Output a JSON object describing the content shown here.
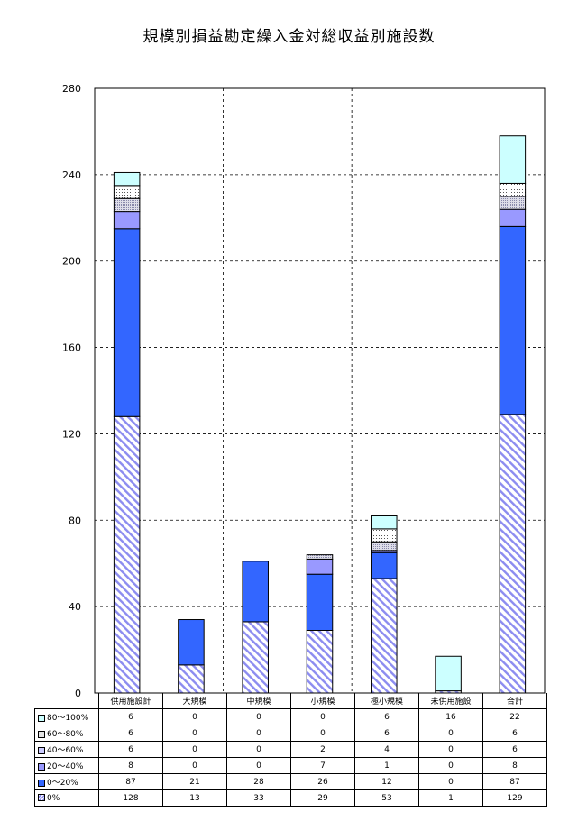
{
  "chart_data": {
    "type": "bar",
    "stacked": true,
    "title": "規模別損益勘定繰入金対総収益別施設数",
    "categories": [
      "供用施設計",
      "大規模",
      "中規模",
      "小規模",
      "極小規模",
      "未供用施設",
      "合計"
    ],
    "ylim": [
      0,
      280
    ],
    "yticks": [
      "0",
      "40",
      "80",
      "120",
      "160",
      "200",
      "240",
      "280"
    ],
    "grid": true,
    "legend": "table-below",
    "series": [
      {
        "name": "0%",
        "values": [
          128,
          13,
          33,
          29,
          53,
          1,
          129
        ],
        "color": "#8c8cf0",
        "pattern": "hatch"
      },
      {
        "name": "0～20%",
        "values": [
          87,
          21,
          28,
          26,
          12,
          0,
          87
        ],
        "color": "#3366ff",
        "pattern": "solid"
      },
      {
        "name": "20～40%",
        "values": [
          8,
          0,
          0,
          7,
          1,
          0,
          8
        ],
        "color": "#9999ff",
        "pattern": "solid"
      },
      {
        "name": "40～60%",
        "values": [
          6,
          0,
          0,
          2,
          4,
          0,
          6
        ],
        "color": "#ccccff",
        "pattern": "dots-dense"
      },
      {
        "name": "60～80%",
        "values": [
          6,
          0,
          0,
          0,
          6,
          0,
          6
        ],
        "color": "#ffffff",
        "pattern": "dots"
      },
      {
        "name": "80～100%",
        "values": [
          6,
          0,
          0,
          0,
          6,
          16,
          22
        ],
        "color": "#ccffff",
        "pattern": "solid"
      }
    ]
  }
}
